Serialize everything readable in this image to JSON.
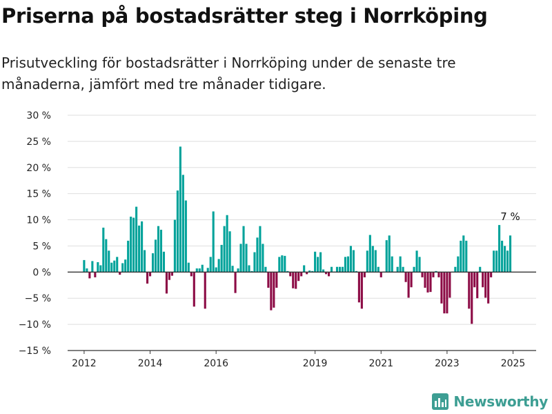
{
  "title": "Priserna på bostadsrätter steg i Norrköping",
  "subtitle": "Prisutveckling för bostadsrätter i Norrköping under de senaste tre månaderna, jämfört med tre månader tidigare.",
  "brand": "Newsworthy",
  "colors": {
    "positive": "#00a29a",
    "negative": "#8c0b45",
    "grid": "#dedede",
    "axis": "#333333",
    "text": "#222222",
    "brand": "#3d9e93"
  },
  "chart_data": {
    "type": "bar",
    "unit": "%",
    "ylim": [
      -15,
      30
    ],
    "yticks": [
      "30 %",
      "25 %",
      "20 %",
      "15 %",
      "10 %",
      "5 %",
      "0 %",
      "−5 %",
      "−10 %",
      "−15 %"
    ],
    "ytick_values": [
      30,
      25,
      20,
      15,
      10,
      5,
      0,
      -5,
      -10,
      -15
    ],
    "xlim": [
      2011.5,
      2025.7
    ],
    "xticks": [
      "2012",
      "2014",
      "2016",
      "2019",
      "2021",
      "2023",
      "2025"
    ],
    "xtick_values": [
      2012,
      2014,
      2016,
      2019,
      2021,
      2023,
      2025
    ],
    "grid": true,
    "legend": "none",
    "annotation": {
      "text": "7 %",
      "target": "last"
    },
    "start": "2012-01",
    "values": [
      2.3,
      0.7,
      -1.2,
      2.1,
      -1.0,
      1.9,
      1.3,
      8.5,
      6.3,
      4.1,
      1.8,
      2.2,
      2.9,
      -0.5,
      1.7,
      2.4,
      6.0,
      10.6,
      10.4,
      12.5,
      8.9,
      9.7,
      4.2,
      -2.2,
      -0.8,
      3.6,
      6.2,
      8.8,
      8.1,
      3.9,
      -4.1,
      -1.5,
      -0.7,
      10.0,
      15.6,
      24.0,
      18.6,
      13.7,
      1.8,
      -0.8,
      -6.6,
      0.7,
      0.7,
      1.4,
      -7.0,
      0.8,
      2.9,
      11.6,
      0.9,
      2.5,
      5.2,
      8.8,
      10.9,
      7.8,
      1.2,
      -4.0,
      0.7,
      5.4,
      8.8,
      5.4,
      1.3,
      0.2,
      3.8,
      6.6,
      8.8,
      5.4,
      1.0,
      -3.0,
      -7.3,
      -6.8,
      -3.0,
      2.9,
      3.2,
      3.1,
      0.2,
      -0.8,
      -3.1,
      -3.2,
      -1.7,
      -0.8,
      1.3,
      -0.4,
      0.3,
      0.2,
      3.9,
      2.9,
      3.8,
      0.5,
      -0.4,
      -0.8,
      1.0,
      0.1,
      1.0,
      1.0,
      1.0,
      2.9,
      3.0,
      5.0,
      4.2,
      0.2,
      -5.8,
      -7.0,
      -1.0,
      4.1,
      7.1,
      5.0,
      4.2,
      1.0,
      -1.0,
      0.1,
      6.1,
      7.0,
      3.0,
      0.1,
      1.0,
      3.0,
      1.0,
      -1.9,
      -4.9,
      -2.9,
      1.0,
      4.1,
      2.9,
      -1.0,
      -3.0,
      -3.9,
      -3.8,
      -1.0,
      0.2,
      -1.0,
      -6.0,
      -7.9,
      -7.9,
      -4.9,
      0.1,
      1.0,
      3.0,
      6.0,
      7.0,
      6.0,
      -7.0,
      -9.9,
      -2.9,
      -5.0,
      1.0,
      -2.9,
      -4.9,
      -6.0,
      -1.0,
      4.1,
      4.1,
      9.0,
      6.0,
      5.0,
      4.1,
      7.0
    ]
  }
}
